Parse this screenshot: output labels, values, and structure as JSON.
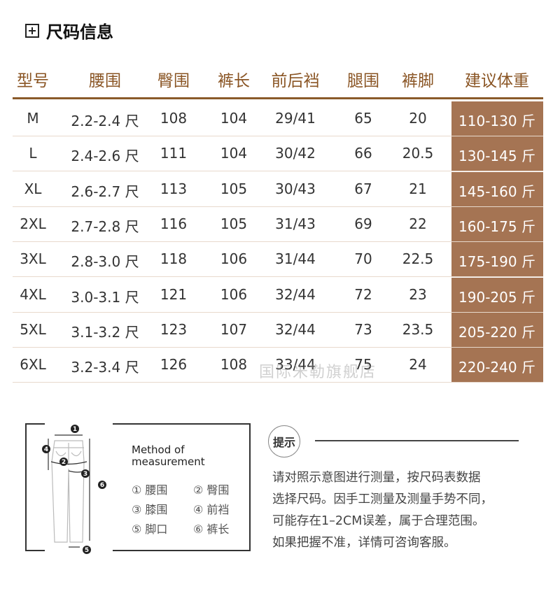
{
  "title": "尺码信息",
  "headers": [
    "型号",
    "腰围",
    "臀围",
    "裤长",
    "前后裆",
    "腿围",
    "裤脚",
    "建议体重"
  ],
  "rows": [
    [
      "M",
      "2.2-2.4 尺",
      "108",
      "104",
      "29/41",
      "65",
      "20",
      "110-130 斤"
    ],
    [
      "L",
      "2.4-2.6 尺",
      "111",
      "104",
      "30/42",
      "66",
      "20.5",
      "130-145 斤"
    ],
    [
      "XL",
      "2.6-2.7 尺",
      "113",
      "105",
      "30/43",
      "67",
      "21",
      "145-160 斤"
    ],
    [
      "2XL",
      "2.7-2.8 尺",
      "116",
      "105",
      "31/43",
      "69",
      "22",
      "160-175 斤"
    ],
    [
      "3XL",
      "2.8-3.0 尺",
      "118",
      "106",
      "31/44",
      "70",
      "22.5",
      "175-190 斤"
    ],
    [
      "4XL",
      "3.0-3.1 尺",
      "121",
      "106",
      "32/44",
      "72",
      "23",
      "190-205 斤"
    ],
    [
      "5XL",
      "3.1-3.2 尺",
      "123",
      "107",
      "32/44",
      "73",
      "23.5",
      "205-220 斤"
    ],
    [
      "6XL",
      "3.2-3.4 尺",
      "126",
      "108",
      "33/44",
      "75",
      "24",
      "220-240 斤"
    ]
  ],
  "watermark": "国际米勒旗舰店",
  "colors": {
    "header_text": "#8a5524",
    "rule": "#8a5a2a",
    "highlight": "#a57453"
  },
  "diagram": {
    "heading_line1": "Method of",
    "heading_line2": "measurement",
    "legend": [
      "① 腰围",
      "② 臀围",
      "③ 膝围",
      "④ 前裆",
      "⑤ 脚口",
      "⑥ 裤长"
    ],
    "markers": [
      "1",
      "2",
      "3",
      "4",
      "5",
      "6"
    ]
  },
  "tip": {
    "label": "提示",
    "lines": [
      "请对照示意图进行测量，按尺码表数据",
      "选择尺码。因手工测量及测量手势不同，",
      "可能存在1–2CM误差，属于合理范围。",
      "如果把握不准，详情可咨询客服。"
    ]
  }
}
